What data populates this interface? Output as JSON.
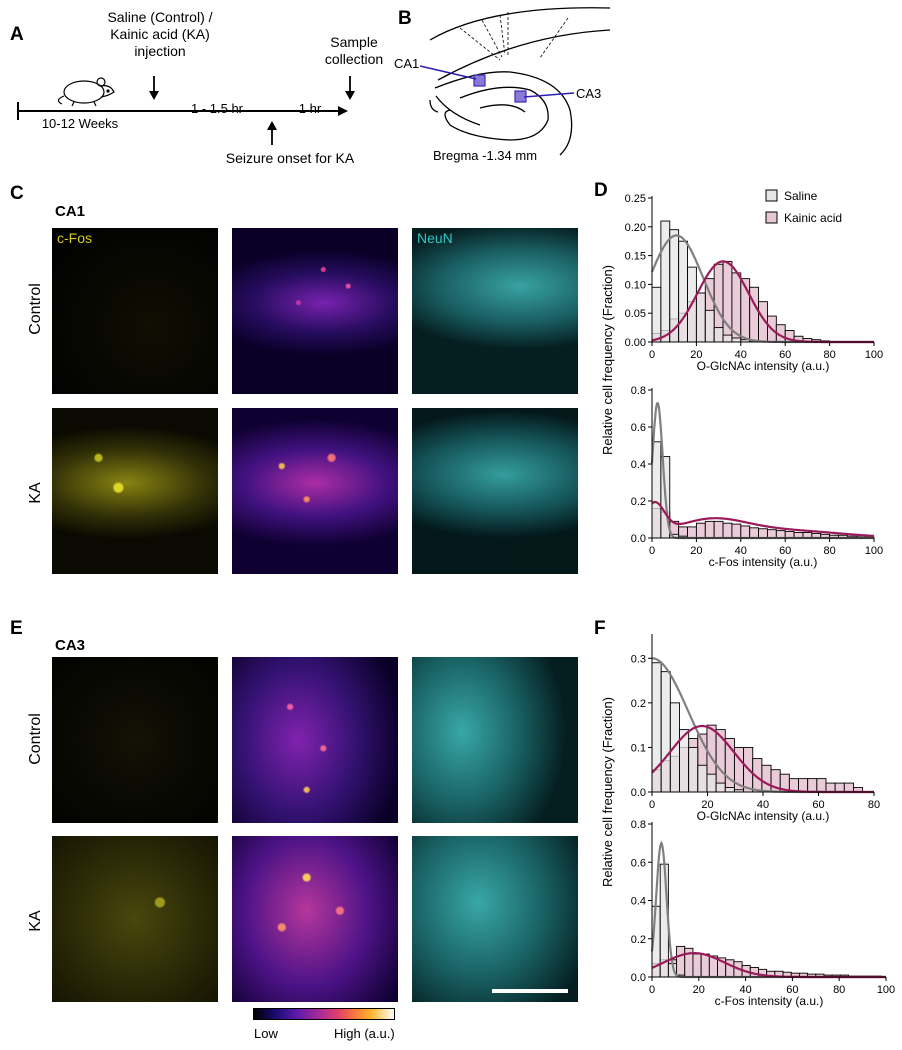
{
  "panels": {
    "a": "A",
    "b": "B",
    "c": "C",
    "d": "D",
    "e": "E",
    "f": "F"
  },
  "timeline": {
    "injection": "Saline (Control) /\nKainic acid (KA)\ninjection",
    "sample": "Sample\ncollection",
    "age": "10-12 Weeks",
    "interval1": "1 - 1.5 hr",
    "interval2": "1 hr",
    "seizure": "Seizure onset for KA"
  },
  "brain": {
    "ca1": "CA1",
    "ca3": "CA3",
    "bregma": "Bregma -1.34 mm"
  },
  "section_c": {
    "region": "CA1",
    "row1": "Control",
    "row2": "KA",
    "chan1": "c-Fos",
    "chan3": "NeuN"
  },
  "section_e": {
    "region": "CA3",
    "row1": "Control",
    "row2": "KA"
  },
  "colorbar": {
    "low": "Low",
    "high": "High (a.u.)"
  },
  "colors": {
    "saline": "#808080",
    "kainic": "#9b1b5a",
    "kainic_fill": "#e8c7d4",
    "saline_fill": "#e6e6e6",
    "cfos": "#d4cc1a",
    "neun": "#35c6c6",
    "marker": "#4b35c9"
  },
  "chart_data": [
    {
      "id": "D-top",
      "type": "bar",
      "subtype": "histogram",
      "xlabel": "O-GlcNAc intensity (a.u.)",
      "ylabel": "Relative cell frequency (Fraction)",
      "xlim": [
        0,
        100
      ],
      "ylim": [
        0,
        0.25
      ],
      "xticks": [
        0,
        20,
        40,
        60,
        80,
        100
      ],
      "yticks": [
        0.0,
        0.05,
        0.1,
        0.15,
        0.2,
        0.25
      ],
      "ytick_labels": [
        "0.00",
        "0.05",
        "0.10",
        "0.15",
        "0.20",
        "0.25"
      ],
      "legend": {
        "position": "top-right"
      },
      "bin_width": 4,
      "bin_starts": [
        0,
        4,
        8,
        12,
        16,
        20,
        24,
        28,
        32,
        36,
        40,
        44,
        48,
        52,
        56,
        60,
        64,
        68,
        72,
        76,
        80
      ],
      "series": [
        {
          "name": "Saline",
          "values": [
            0.095,
            0.21,
            0.195,
            0.175,
            0.13,
            0.085,
            0.055,
            0.025,
            0.012,
            0.007,
            0.004,
            0.002,
            0.001,
            0,
            0,
            0,
            0,
            0,
            0,
            0,
            0
          ],
          "fit": {
            "mean": 11,
            "sd": 12,
            "peak": 0.185
          }
        },
        {
          "name": "Kainic acid",
          "values": [
            0.015,
            0.02,
            0.04,
            0.05,
            0.07,
            0.085,
            0.11,
            0.135,
            0.14,
            0.12,
            0.11,
            0.095,
            0.07,
            0.045,
            0.03,
            0.02,
            0.01,
            0.006,
            0.004,
            0.002,
            0.001
          ],
          "fit": {
            "mean": 32,
            "sd": 11.5,
            "peak": 0.14
          }
        }
      ]
    },
    {
      "id": "D-bottom",
      "type": "bar",
      "subtype": "histogram",
      "xlabel": "c-Fos intensity (a.u.)",
      "xlim": [
        0,
        100
      ],
      "ylim": [
        0,
        0.8
      ],
      "xticks": [
        0,
        20,
        40,
        60,
        80,
        100
      ],
      "yticks": [
        0,
        0.2,
        0.4,
        0.6,
        0.8
      ],
      "ytick_labels": [
        "0.0",
        "0.2",
        "0.4",
        "0.6",
        "0.8"
      ],
      "bin_width": 4,
      "bin_starts": [
        0,
        4,
        8,
        12,
        16,
        20,
        24,
        28,
        32,
        36,
        40,
        44,
        48,
        52,
        56,
        60,
        64,
        68,
        72,
        76,
        80,
        84,
        88,
        92,
        96
      ],
      "series": [
        {
          "name": "Saline",
          "values": [
            0.52,
            0.44,
            0.02,
            0.01,
            0,
            0,
            0,
            0,
            0,
            0,
            0,
            0,
            0,
            0,
            0,
            0,
            0,
            0,
            0,
            0,
            0,
            0,
            0,
            0,
            0
          ],
          "fit": {
            "mean": 2.5,
            "sd": 2.3,
            "peak": 0.73
          }
        },
        {
          "name": "Kainic acid",
          "values": [
            0.16,
            0.14,
            0.09,
            0.06,
            0.06,
            0.08,
            0.09,
            0.09,
            0.08,
            0.075,
            0.065,
            0.055,
            0.05,
            0.045,
            0.04,
            0.035,
            0.03,
            0.03,
            0.025,
            0.02,
            0.015,
            0.015,
            0.01,
            0.01,
            0.005
          ],
          "fit": "two-component"
        }
      ]
    },
    {
      "id": "F-top",
      "type": "bar",
      "subtype": "histogram",
      "xlabel": "O-GlcNAc intensity (a.u.)",
      "ylabel": "Relative cell frequency (Fraction)",
      "xlim": [
        0,
        80
      ],
      "ylim": [
        0,
        0.35
      ],
      "xticks": [
        0,
        20,
        40,
        60,
        80
      ],
      "yticks": [
        0.0,
        0.1,
        0.2,
        0.3
      ],
      "ytick_labels": [
        "0.0",
        "0.1",
        "0.2",
        "0.3"
      ],
      "bin_width": 3.3,
      "bin_starts": [
        0,
        3.3,
        6.6,
        9.9,
        13.2,
        16.5,
        19.8,
        23.1,
        26.4,
        29.7,
        33,
        36.3,
        39.6,
        42.9,
        46.2,
        49.5,
        52.8,
        56.1,
        59.4,
        62.7,
        66,
        69.3,
        72.6
      ],
      "series": [
        {
          "name": "Saline",
          "values": [
            0.29,
            0.27,
            0.2,
            0.14,
            0.1,
            0.06,
            0.04,
            0.02,
            0.01,
            0.005,
            0,
            0,
            0,
            0,
            0,
            0,
            0,
            0,
            0,
            0,
            0,
            0,
            0
          ],
          "fit": {
            "mean": 0,
            "sd": 13,
            "peak": 0.3
          }
        },
        {
          "name": "Kainic acid",
          "values": [
            0.05,
            0.07,
            0.08,
            0.1,
            0.12,
            0.13,
            0.15,
            0.14,
            0.12,
            0.1,
            0.1,
            0.075,
            0.06,
            0.05,
            0.04,
            0.03,
            0.03,
            0.03,
            0.03,
            0.02,
            0.02,
            0.02,
            0.01
          ],
          "fit": {
            "mean": 18,
            "sd": 11.5,
            "peak": 0.148
          }
        }
      ]
    },
    {
      "id": "F-bottom",
      "type": "bar",
      "subtype": "histogram",
      "xlabel": "c-Fos intensity (a.u.)",
      "xlim": [
        0,
        100
      ],
      "ylim": [
        0,
        0.8
      ],
      "xticks": [
        0,
        20,
        40,
        60,
        80,
        100
      ],
      "yticks": [
        0,
        0.2,
        0.4,
        0.6,
        0.8
      ],
      "ytick_labels": [
        "0.0",
        "0.2",
        "0.4",
        "0.6",
        "0.8"
      ],
      "bin_width": 3.5,
      "bin_starts": [
        0,
        3.5,
        7,
        10.5,
        14,
        17.5,
        21,
        24.5,
        28,
        31.5,
        35,
        38.5,
        42,
        45.5,
        49,
        52.5,
        56,
        59.5,
        63,
        66.5,
        70,
        73.5,
        77,
        80.5,
        84,
        87.5,
        91,
        94.5
      ],
      "series": [
        {
          "name": "Saline",
          "values": [
            0.37,
            0.59,
            0.07,
            0.01,
            0,
            0,
            0,
            0,
            0,
            0,
            0,
            0,
            0,
            0,
            0,
            0,
            0,
            0,
            0,
            0,
            0,
            0,
            0,
            0,
            0,
            0,
            0,
            0
          ],
          "fit": {
            "mean": 4,
            "sd": 2.2,
            "peak": 0.7
          }
        },
        {
          "name": "Kainic acid",
          "values": [
            0.07,
            0.09,
            0.09,
            0.16,
            0.15,
            0.12,
            0.12,
            0.11,
            0.1,
            0.09,
            0.08,
            0.06,
            0.05,
            0.04,
            0.03,
            0.03,
            0.025,
            0.02,
            0.02,
            0.015,
            0.015,
            0.01,
            0.01,
            0.01,
            0.005,
            0.005,
            0.005,
            0.005
          ],
          "fit": {
            "mean": 18,
            "sd": 13,
            "peak": 0.125
          }
        }
      ]
    }
  ]
}
